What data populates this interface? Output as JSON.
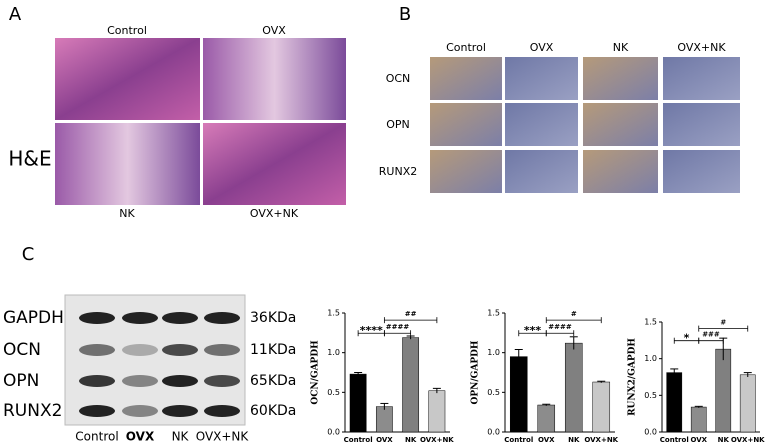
{
  "panel_labels": [
    "A",
    "B",
    "C"
  ],
  "he": {
    "label": "H&E",
    "groups": [
      "Control",
      "OVX",
      "NK",
      "OVX+NK"
    ]
  },
  "ihc": {
    "columns": [
      "Control",
      "OVX",
      "NK",
      "OVX+NK"
    ],
    "rows": [
      "OCN",
      "OPN",
      "RUNX2"
    ]
  },
  "western": {
    "proteins": [
      "GAPDH",
      "OCN",
      "OPN",
      "RUNX2"
    ],
    "sizes": [
      "36KDa",
      "11KDa",
      "65KDa",
      "60KDa"
    ],
    "lanes": [
      "Control",
      "OVX",
      "NK",
      "OVX+NK"
    ]
  },
  "chart_data": [
    {
      "type": "bar",
      "ylabel": "OCN/GAPDH",
      "categories": [
        "Control",
        "OVX",
        "NK",
        "OVX+NK"
      ],
      "values": [
        0.73,
        0.32,
        1.19,
        0.52
      ],
      "errors": [
        0.02,
        0.04,
        0.02,
        0.03
      ],
      "colors": [
        "#000000",
        "#8c8c8c",
        "#808080",
        "#c8c8c8"
      ],
      "ylim": [
        0,
        1.5
      ],
      "yticks": [
        {
          "value": 0,
          "label": "0.0"
        },
        0.5,
        {
          "value": 1,
          "label": "1.0"
        },
        1.5
      ],
      "annotations": [
        "****",
        "####",
        "##"
      ]
    },
    {
      "type": "bar",
      "ylabel": "OPN/GAPDH",
      "categories": [
        "Control",
        "OVX",
        "NK",
        "OVX+NK"
      ],
      "values": [
        0.95,
        0.34,
        1.12,
        0.63
      ],
      "errors": [
        0.09,
        0.01,
        0.08,
        0.01
      ],
      "colors": [
        "#000000",
        "#8c8c8c",
        "#808080",
        "#c8c8c8"
      ],
      "ylim": [
        0,
        1.5
      ],
      "yticks": [
        {
          "value": 0,
          "label": "0.0"
        },
        0.5,
        {
          "value": 1,
          "label": "1.0"
        },
        1.5
      ],
      "annotations": [
        "***",
        "####",
        "#"
      ]
    },
    {
      "type": "bar",
      "ylabel": "RUNX2/GAPDH",
      "categories": [
        "Control",
        "OVX",
        "NK",
        "OVX+NK"
      ],
      "values": [
        0.81,
        0.34,
        1.13,
        0.78
      ],
      "errors": [
        0.05,
        0.01,
        0.15,
        0.03
      ],
      "colors": [
        "#000000",
        "#8c8c8c",
        "#808080",
        "#c8c8c8"
      ],
      "ylim": [
        0,
        1.5
      ],
      "yticks": [
        {
          "value": 0,
          "label": "0.0"
        },
        0.5,
        {
          "value": 1,
          "label": "1.0"
        },
        1.5
      ],
      "annotations": [
        "*",
        "###",
        "#"
      ]
    }
  ]
}
